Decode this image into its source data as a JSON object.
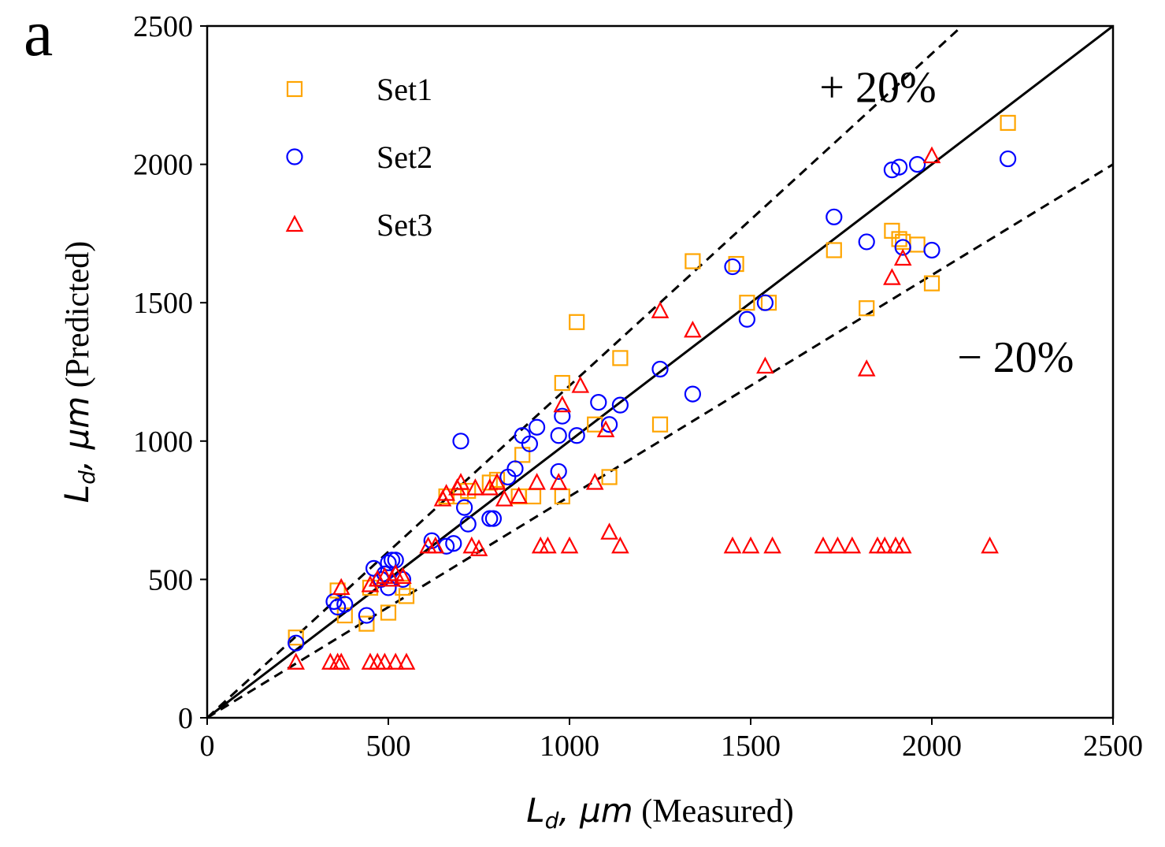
{
  "panel_label": "a",
  "chart_data": {
    "type": "scatter",
    "xlabel": {
      "var": "L",
      "sub": "d",
      "unit": ", μm",
      "qual": " (Measured)"
    },
    "ylabel": {
      "var": "L",
      "sub": "d",
      "unit": ", μm",
      "qual": " (Predicted)"
    },
    "xlim": [
      0,
      2500
    ],
    "ylim": [
      0,
      2500
    ],
    "xticks": [
      "0",
      "500",
      "1000",
      "1500",
      "2000",
      "2500"
    ],
    "yticks": [
      "0",
      "500",
      "1000",
      "1500",
      "2000",
      "2500"
    ],
    "grid": false,
    "legend_position": "top-left",
    "reference_lines": [
      {
        "kind": "y=x",
        "slope": 1.0,
        "style": "solid",
        "color": "#000000"
      },
      {
        "kind": "+20%",
        "slope": 1.2,
        "style": "dashed",
        "color": "#000000"
      },
      {
        "kind": "-20%",
        "slope": 0.8,
        "style": "dashed",
        "color": "#000000"
      }
    ],
    "annotations": [
      {
        "text": "+ 20%",
        "x": 1690,
        "y": 2225
      },
      {
        "text": "− 20%",
        "x": 2070,
        "y": 1250
      }
    ],
    "series": [
      {
        "name": "Set1",
        "marker": "square",
        "color": "#FFA500",
        "points": [
          [
            245,
            290
          ],
          [
            360,
            460
          ],
          [
            380,
            370
          ],
          [
            440,
            340
          ],
          [
            450,
            470
          ],
          [
            500,
            380
          ],
          [
            540,
            470
          ],
          [
            550,
            440
          ],
          [
            660,
            800
          ],
          [
            700,
            800
          ],
          [
            720,
            820
          ],
          [
            780,
            850
          ],
          [
            800,
            860
          ],
          [
            860,
            800
          ],
          [
            870,
            950
          ],
          [
            900,
            800
          ],
          [
            980,
            800
          ],
          [
            980,
            1210
          ],
          [
            1020,
            1430
          ],
          [
            1070,
            1060
          ],
          [
            1110,
            870
          ],
          [
            1140,
            1300
          ],
          [
            1250,
            1060
          ],
          [
            1340,
            1650
          ],
          [
            1460,
            1640
          ],
          [
            1490,
            1500
          ],
          [
            1550,
            1500
          ],
          [
            1730,
            1690
          ],
          [
            1820,
            1480
          ],
          [
            1890,
            1760
          ],
          [
            1910,
            1730
          ],
          [
            1920,
            1720
          ],
          [
            1960,
            1710
          ],
          [
            2000,
            1570
          ],
          [
            2210,
            2150
          ]
        ]
      },
      {
        "name": "Set2",
        "marker": "circle",
        "color": "#0000FF",
        "points": [
          [
            245,
            270
          ],
          [
            350,
            420
          ],
          [
            360,
            400
          ],
          [
            380,
            410
          ],
          [
            440,
            370
          ],
          [
            460,
            540
          ],
          [
            480,
            500
          ],
          [
            490,
            520
          ],
          [
            500,
            470
          ],
          [
            500,
            560
          ],
          [
            510,
            570
          ],
          [
            520,
            570
          ],
          [
            540,
            500
          ],
          [
            620,
            640
          ],
          [
            660,
            620
          ],
          [
            680,
            630
          ],
          [
            700,
            1000
          ],
          [
            710,
            760
          ],
          [
            720,
            700
          ],
          [
            780,
            720
          ],
          [
            790,
            720
          ],
          [
            830,
            870
          ],
          [
            850,
            900
          ],
          [
            870,
            1020
          ],
          [
            890,
            990
          ],
          [
            910,
            1050
          ],
          [
            970,
            1020
          ],
          [
            970,
            890
          ],
          [
            980,
            1090
          ],
          [
            1020,
            1020
          ],
          [
            1080,
            1140
          ],
          [
            1110,
            1060
          ],
          [
            1140,
            1130
          ],
          [
            1250,
            1260
          ],
          [
            1340,
            1170
          ],
          [
            1450,
            1630
          ],
          [
            1490,
            1440
          ],
          [
            1540,
            1500
          ],
          [
            1730,
            1810
          ],
          [
            1820,
            1720
          ],
          [
            1890,
            1980
          ],
          [
            1910,
            1990
          ],
          [
            1920,
            1700
          ],
          [
            1960,
            2000
          ],
          [
            2000,
            1690
          ],
          [
            2210,
            2020
          ]
        ]
      },
      {
        "name": "Set3",
        "marker": "triangle",
        "color": "#FF0000",
        "points": [
          [
            245,
            200
          ],
          [
            340,
            200
          ],
          [
            360,
            200
          ],
          [
            370,
            200
          ],
          [
            450,
            200
          ],
          [
            470,
            200
          ],
          [
            490,
            200
          ],
          [
            520,
            200
          ],
          [
            550,
            200
          ],
          [
            370,
            470
          ],
          [
            450,
            480
          ],
          [
            470,
            500
          ],
          [
            490,
            510
          ],
          [
            510,
            500
          ],
          [
            520,
            520
          ],
          [
            540,
            510
          ],
          [
            610,
            620
          ],
          [
            630,
            620
          ],
          [
            650,
            790
          ],
          [
            660,
            810
          ],
          [
            690,
            830
          ],
          [
            700,
            850
          ],
          [
            730,
            620
          ],
          [
            740,
            830
          ],
          [
            750,
            610
          ],
          [
            780,
            830
          ],
          [
            800,
            850
          ],
          [
            820,
            790
          ],
          [
            860,
            800
          ],
          [
            910,
            850
          ],
          [
            920,
            620
          ],
          [
            940,
            620
          ],
          [
            970,
            850
          ],
          [
            980,
            1130
          ],
          [
            1000,
            620
          ],
          [
            1030,
            1200
          ],
          [
            1070,
            850
          ],
          [
            1100,
            1040
          ],
          [
            1110,
            670
          ],
          [
            1140,
            620
          ],
          [
            1250,
            1470
          ],
          [
            1340,
            1400
          ],
          [
            1450,
            620
          ],
          [
            1500,
            620
          ],
          [
            1540,
            1270
          ],
          [
            1560,
            620
          ],
          [
            1700,
            620
          ],
          [
            1740,
            620
          ],
          [
            1780,
            620
          ],
          [
            1820,
            1260
          ],
          [
            1850,
            620
          ],
          [
            1870,
            620
          ],
          [
            1890,
            1590
          ],
          [
            1900,
            620
          ],
          [
            1920,
            620
          ],
          [
            1920,
            1660
          ],
          [
            2000,
            2030
          ],
          [
            2160,
            620
          ]
        ]
      }
    ]
  }
}
